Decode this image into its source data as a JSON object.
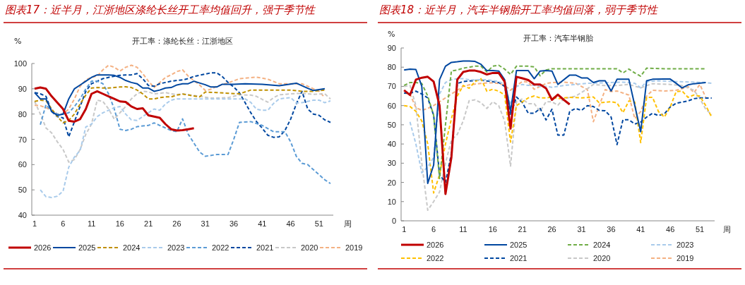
{
  "chart_data": [
    {
      "type": "line",
      "title": "图表17：近半月，江浙地区涤纶长丝开工率均值回升，强于季节性",
      "subtitle": "开工率：涤纶长丝：江浙地区",
      "xlabel": "周",
      "ylabel": "%",
      "xlim": [
        0.5,
        53.5
      ],
      "xticks": [
        1,
        6,
        11,
        16,
        21,
        26,
        31,
        36,
        41,
        46,
        51
      ],
      "ylim": [
        40,
        100
      ],
      "yticks": [
        40,
        50,
        60,
        70,
        80,
        90,
        100
      ],
      "legend": "bottom",
      "series": [
        {
          "name": "2026",
          "color": "#c00000",
          "line_style": "solid",
          "x": [
            1,
            2,
            3,
            4,
            5,
            6,
            7,
            8,
            9,
            10,
            11,
            12,
            13,
            14,
            15,
            16,
            17,
            18,
            19,
            20,
            21,
            22,
            23,
            24,
            25,
            26,
            27,
            28,
            29
          ],
          "values": [
            90,
            90.5,
            90,
            87,
            84.5,
            82,
            77.3,
            77,
            78,
            82,
            88,
            89,
            88,
            87,
            86,
            85,
            84.8,
            83,
            82,
            82.3,
            79.5,
            79,
            78.5,
            76,
            74,
            73.5,
            73.6,
            74,
            74.4
          ]
        },
        {
          "name": "2025",
          "color": "#0047a0",
          "line_style": "solid",
          "x": [
            1,
            2,
            3,
            4,
            5,
            6,
            7,
            8,
            9,
            10,
            11,
            12,
            13,
            14,
            15,
            16,
            17,
            18,
            19,
            20,
            21,
            22,
            23,
            24,
            25,
            26,
            27,
            28,
            29,
            30,
            31,
            32,
            33,
            34,
            36,
            38,
            41,
            44,
            47,
            49,
            50,
            52
          ],
          "values": [
            88.5,
            86,
            86,
            81,
            79.5,
            80,
            86,
            90,
            91.5,
            93,
            94.5,
            95.5,
            95.5,
            95.5,
            95.3,
            94.5,
            93.3,
            92.5,
            92,
            90.3,
            90.3,
            89,
            89.5,
            90.3,
            90.5,
            91.5,
            92,
            92,
            93,
            92.3,
            91.6,
            90.7,
            90.7,
            91.8,
            91.8,
            92,
            91.8,
            91.2,
            92.2,
            90.2,
            89.3,
            90
          ]
        },
        {
          "name": "2024",
          "color": "#c09000",
          "line_style": "dashed",
          "x": [
            1,
            2,
            3,
            4,
            5,
            6,
            7,
            8,
            9,
            10,
            11,
            12,
            13,
            14,
            15,
            16,
            17,
            18,
            19,
            20,
            21,
            22,
            23,
            24,
            25,
            26,
            27,
            30,
            31,
            33,
            35,
            37,
            39,
            43,
            46,
            48,
            50,
            52
          ],
          "values": [
            85,
            85.5,
            85.3,
            82,
            79,
            76.5,
            77.5,
            80,
            84,
            87.5,
            90.3,
            90.5,
            90.3,
            90.3,
            90.5,
            90.7,
            90.8,
            90.5,
            89.5,
            88,
            86,
            86,
            86.5,
            86.8,
            86.8,
            87.5,
            87.9,
            86.8,
            88.7,
            88.5,
            88.2,
            88,
            89.5,
            89.5,
            89.5,
            89,
            89,
            89.5
          ]
        },
        {
          "name": "2023",
          "color": "#a9cbeb",
          "line_style": "dashed",
          "x": [
            2,
            3,
            4,
            5,
            6,
            7,
            8,
            9,
            10,
            11,
            12,
            13,
            14,
            15,
            16,
            17,
            18,
            19,
            20,
            21,
            22,
            23,
            24,
            25,
            26,
            27,
            30,
            35,
            38,
            39,
            40,
            41,
            42,
            43,
            44,
            45,
            46,
            47,
            48,
            49,
            50,
            51,
            52,
            53
          ],
          "values": [
            50,
            47.3,
            47,
            47.5,
            49.5,
            59,
            63,
            65.6,
            74.9,
            76,
            79,
            80.5,
            81.5,
            82.5,
            83,
            80,
            77.7,
            77.5,
            79,
            80.5,
            82,
            81.5,
            84,
            85.5,
            86,
            86,
            86,
            86,
            86,
            84.6,
            81.9,
            81.5,
            81.5,
            84.2,
            86,
            86.3,
            86.5,
            84.4,
            84.5,
            85,
            85.5,
            85.5,
            84.5,
            85.2
          ]
        },
        {
          "name": "2022",
          "color": "#5b9bd5",
          "line_style": "dashed",
          "x": [
            2,
            3,
            4,
            5,
            6,
            7,
            8,
            9,
            10,
            11,
            12,
            13,
            14,
            15,
            16,
            17,
            18,
            19,
            20,
            21,
            22,
            23,
            24,
            25,
            26,
            27,
            28,
            30,
            31,
            33,
            35,
            36,
            37,
            39,
            41,
            43,
            45,
            46,
            47,
            48,
            49,
            50,
            51,
            52,
            53
          ],
          "values": [
            75.8,
            83.7,
            81,
            80,
            80,
            80.5,
            83,
            86,
            90,
            93,
            93,
            92,
            88,
            82,
            74,
            73.5,
            74,
            75,
            75.3,
            75.5,
            76.5,
            75.5,
            74.5,
            73.5,
            73,
            78.1,
            72,
            65,
            63.3,
            64,
            64,
            70,
            76.7,
            77,
            75.5,
            73,
            73,
            69,
            63.3,
            60.5,
            60,
            58,
            56,
            54,
            52.5
          ]
        },
        {
          "name": "2021",
          "color": "#0047a0",
          "line_style": "dashed",
          "x": [
            1,
            2,
            3,
            4,
            5,
            6,
            7,
            8,
            9,
            10,
            11,
            12,
            13,
            14,
            15,
            16,
            17,
            18,
            19,
            20,
            21,
            22,
            23,
            24,
            25,
            26,
            27,
            28,
            29,
            31,
            32,
            33,
            34,
            35,
            36,
            37,
            38,
            39,
            40,
            41,
            42,
            43,
            44,
            45,
            46,
            47,
            48,
            49,
            50,
            51,
            52,
            53
          ],
          "values": [
            88.5,
            88,
            87,
            81,
            79,
            78.5,
            71,
            77,
            83,
            89,
            92,
            93,
            94,
            94.5,
            95,
            95.3,
            95.5,
            95.5,
            96,
            94,
            91.3,
            91,
            92,
            92.5,
            93,
            93.3,
            93.5,
            94,
            94.9,
            95.8,
            96.3,
            96.3,
            94.8,
            92.5,
            90.7,
            88.4,
            84.5,
            80.5,
            77,
            74.4,
            71.6,
            70.8,
            71,
            73.5,
            78,
            84,
            89,
            82,
            80,
            79.5,
            77.7,
            76.7
          ]
        },
        {
          "name": "2020",
          "color": "#c8c8c8",
          "line_style": "dashed",
          "x": [
            1,
            2,
            3,
            4,
            5,
            6,
            7,
            8,
            9,
            10,
            11,
            12,
            13,
            14,
            15,
            16,
            17,
            18,
            19,
            20,
            21,
            22,
            23,
            24,
            25,
            26,
            27,
            30,
            32,
            35,
            37,
            39,
            40,
            41,
            42,
            43,
            44,
            46,
            48,
            50,
            52,
            53
          ],
          "values": [
            85,
            80,
            74.5,
            72.5,
            69,
            66,
            61,
            62,
            66,
            72,
            76,
            85.5,
            85,
            82,
            78,
            80.5,
            83,
            86,
            88,
            89,
            88.8,
            88,
            88.2,
            88.5,
            88,
            87.7,
            88,
            87,
            86.3,
            86.5,
            87.6,
            87.5,
            87,
            85.8,
            84.7,
            86.5,
            87.6,
            88,
            88.2,
            87.8,
            88,
            86
          ]
        },
        {
          "name": "2019",
          "color": "#f4b183",
          "line_style": "dashed",
          "x": [
            1,
            2,
            3,
            4,
            5,
            6,
            7,
            8,
            9,
            10,
            11,
            12,
            13,
            14,
            15,
            16,
            17,
            18,
            19,
            20,
            21,
            22,
            23,
            24,
            25,
            26,
            27,
            28,
            30,
            31,
            32,
            33,
            35,
            37,
            38,
            40,
            42,
            44,
            45,
            48,
            49,
            51,
            52
          ],
          "values": [
            83.5,
            83.3,
            82.5,
            81.5,
            80,
            80,
            82,
            86,
            91,
            93.5,
            94.5,
            95,
            97.5,
            99.3,
            98.5,
            97,
            98.5,
            99.3,
            98.5,
            96,
            93,
            90.5,
            92.5,
            94.5,
            95.5,
            96.8,
            97.5,
            95,
            91.5,
            89.3,
            89.8,
            91,
            92.3,
            94,
            94.2,
            94.6,
            93.8,
            92,
            92,
            92,
            91,
            89,
            86.5
          ]
        }
      ]
    },
    {
      "type": "line",
      "title": "图表18：近半月，汽车半钢胎开工率均值回落，弱于季节性",
      "subtitle": "开工率：汽车半钢胎",
      "xlabel": "周",
      "ylabel": "%",
      "xlim": [
        0.5,
        53.5
      ],
      "xticks": [
        1,
        6,
        11,
        16,
        21,
        26,
        31,
        36,
        41,
        46,
        51
      ],
      "ylim": [
        0,
        90
      ],
      "yticks": [
        0,
        10,
        20,
        30,
        40,
        50,
        60,
        70,
        80,
        90
      ],
      "legend": "bottom",
      "series": [
        {
          "name": "2026",
          "color": "#c00000",
          "line_style": "solid",
          "x": [
            1,
            2,
            3,
            4,
            5,
            6,
            7,
            8,
            9,
            10,
            11,
            12,
            13,
            14,
            15,
            16,
            17,
            18,
            19,
            20,
            21,
            22,
            23,
            24,
            25,
            26,
            27,
            28,
            29
          ],
          "values": [
            68,
            65.5,
            73.5,
            74.5,
            75,
            72.5,
            60,
            14,
            33,
            73.5,
            77.5,
            78.2,
            78.2,
            77.5,
            76.2,
            77,
            77,
            72.5,
            48,
            75,
            74.2,
            73.3,
            71,
            71,
            69,
            63,
            65.7,
            63,
            60.6
          ]
        },
        {
          "name": "2025",
          "color": "#0047a0",
          "line_style": "solid",
          "x": [
            1,
            2,
            3,
            4,
            5,
            6,
            7,
            8,
            9,
            10,
            11,
            12,
            13,
            14,
            15,
            16,
            17,
            18,
            19,
            20,
            21,
            22,
            23,
            24,
            25,
            26,
            27,
            29,
            30,
            31,
            32,
            33,
            34,
            35,
            36,
            37,
            39,
            41,
            42,
            43,
            45,
            46,
            47,
            48,
            49,
            50,
            52
          ],
          "values": [
            78.5,
            79,
            78.8,
            70,
            19.5,
            29,
            73.5,
            80.5,
            82.5,
            82.8,
            83.2,
            83.2,
            83,
            81.5,
            78.2,
            78.2,
            78,
            73.5,
            57,
            78.2,
            78.2,
            78.2,
            74,
            78,
            78.2,
            78,
            71,
            75.9,
            75.9,
            74.4,
            74.4,
            72,
            72.9,
            72.9,
            67.6,
            73.7,
            73.7,
            46.4,
            72.9,
            73.7,
            73.8,
            73.8,
            71.6,
            69.2,
            70.8,
            71.4,
            72
          ]
        },
        {
          "name": "2024",
          "color": "#70ad47",
          "line_style": "dashed",
          "x": [
            1,
            2,
            3,
            4,
            5,
            6,
            7,
            8,
            9,
            10,
            11,
            12,
            13,
            14,
            15,
            16,
            17,
            18,
            19,
            20,
            21,
            22,
            23,
            24,
            25,
            26,
            30,
            34,
            37,
            38,
            39,
            40,
            41,
            42,
            45,
            48,
            52
          ],
          "values": [
            70.5,
            72,
            72,
            71.5,
            65,
            55,
            22,
            50,
            78,
            78.5,
            79.5,
            80,
            80.5,
            80.5,
            77.5,
            80.5,
            81,
            79,
            76.2,
            80.5,
            80.5,
            80.5,
            80.2,
            75.5,
            78.5,
            79.2,
            79.2,
            79.2,
            79.2,
            77,
            79,
            77,
            75.3,
            79.5,
            79.2,
            79.2,
            79.2
          ]
        },
        {
          "name": "2023",
          "color": "#a9cbeb",
          "line_style": "dashed",
          "x": [
            2,
            3,
            4,
            5,
            6,
            7,
            8,
            9,
            10,
            11,
            12,
            13,
            14,
            15,
            16,
            17,
            18,
            19,
            20,
            21,
            22,
            23,
            24,
            25,
            26,
            28,
            32,
            38,
            40,
            41,
            42,
            44,
            47,
            50,
            52,
            53
          ],
          "values": [
            51.5,
            40,
            25,
            28,
            33,
            66,
            72,
            73.5,
            74,
            74,
            73.5,
            73.3,
            73.5,
            73.5,
            73,
            72.5,
            71,
            60.5,
            70,
            71,
            70.5,
            70.5,
            70,
            70,
            69.5,
            70.5,
            71.6,
            72.2,
            71.6,
            69.2,
            72.5,
            72.9,
            72.5,
            72.2,
            72,
            71.6
          ]
        },
        {
          "name": "2022",
          "color": "#ffc000",
          "line_style": "dashed",
          "x": [
            1,
            2,
            3,
            4,
            5,
            6,
            7,
            8,
            9,
            10,
            11,
            12,
            13,
            14,
            15,
            16,
            17,
            18,
            19,
            20,
            21,
            22,
            23,
            24,
            25,
            26,
            27,
            29,
            31,
            33,
            34,
            36,
            37,
            38,
            39,
            40,
            41,
            42,
            43,
            44,
            45,
            46,
            47,
            48,
            49,
            50,
            51,
            52,
            53
          ],
          "values": [
            60,
            59.5,
            57,
            52,
            40,
            14.5,
            24,
            40,
            53,
            65,
            70.5,
            69,
            72.5,
            74,
            67.5,
            68.5,
            67.5,
            65.5,
            41,
            60,
            62,
            64,
            65,
            64,
            64,
            64.5,
            63.6,
            64.3,
            64,
            64.5,
            61.4,
            62,
            61.4,
            56.3,
            62.4,
            61.8,
            40.7,
            64.3,
            64.3,
            56.9,
            54,
            59.3,
            67.3,
            67.6,
            64.3,
            65.5,
            64.9,
            60,
            54
          ]
        },
        {
          "name": "2021",
          "color": "#0047a0",
          "line_style": "dashed",
          "x": [
            1,
            2,
            3,
            4,
            5,
            6,
            7,
            8,
            9,
            10,
            11,
            12,
            13,
            14,
            15,
            16,
            17,
            18,
            19,
            20,
            21,
            22,
            23,
            24,
            25,
            26,
            27,
            28,
            29,
            30,
            31,
            32,
            33,
            34,
            35,
            36,
            37,
            38,
            39,
            40,
            41,
            42,
            43,
            44,
            45,
            46,
            47,
            48,
            49,
            50,
            51,
            53
          ],
          "values": [
            66.5,
            66.5,
            67.5,
            66,
            64,
            55,
            24,
            20,
            35,
            71.5,
            72.5,
            72.8,
            73,
            73.3,
            72.8,
            72.5,
            72,
            70,
            55,
            64.5,
            61.5,
            56,
            56,
            58.5,
            52.5,
            58.1,
            44.6,
            44.6,
            56.9,
            58.5,
            57.5,
            60,
            59.5,
            57.5,
            57.3,
            54,
            39.7,
            52.6,
            52.6,
            50.4,
            51.4,
            54,
            56,
            54.8,
            55.7,
            59.3,
            61.2,
            61.8,
            62.4,
            63.6,
            64,
            63.9
          ]
        },
        {
          "name": "2020",
          "color": "#c8c8c8",
          "line_style": "dashed",
          "x": [
            1,
            2,
            3,
            4,
            5,
            6,
            7,
            8,
            9,
            10,
            11,
            12,
            13,
            14,
            15,
            16,
            17,
            18,
            19,
            20,
            21,
            22,
            23,
            24,
            25,
            26,
            27,
            28,
            30,
            32,
            33,
            35,
            37,
            39,
            41,
            42,
            43,
            46,
            48,
            50,
            51,
            52,
            53
          ],
          "values": [
            70,
            70.5,
            60,
            30,
            5.5,
            10,
            15,
            30,
            42,
            45,
            52,
            62.5,
            63,
            61.5,
            58.5,
            62,
            60,
            52,
            28.5,
            62,
            63.5,
            61,
            61,
            57,
            62,
            62,
            60.2,
            63.6,
            64.9,
            68.8,
            71,
            70.4,
            70.4,
            71,
            69.2,
            70.4,
            71.4,
            71,
            70.4,
            68,
            63.6,
            58.1,
            55.3
          ]
        },
        {
          "name": "2019",
          "color": "#f4b183",
          "line_style": "dashed",
          "x": [
            1,
            2,
            3,
            4,
            5,
            6,
            7,
            8,
            9,
            10,
            11,
            12,
            13,
            14,
            15,
            16,
            17,
            18,
            19,
            20,
            21,
            22,
            23,
            24,
            25,
            26,
            28,
            30,
            32,
            33,
            34,
            35,
            36,
            37,
            39,
            40,
            41,
            42,
            43,
            45,
            47,
            48,
            49,
            50,
            51,
            52
          ],
          "values": [
            66.5,
            66,
            59,
            57.5,
            58.5,
            60,
            62,
            64,
            66,
            68,
            70,
            70.8,
            71.2,
            71.5,
            71.8,
            71.8,
            71.5,
            70.5,
            68,
            70.5,
            72.5,
            72.2,
            68.5,
            70,
            71.5,
            72,
            72.2,
            71.6,
            68.3,
            51.6,
            60,
            68.3,
            67.3,
            67.6,
            65.5,
            53.2,
            56.9,
            64.9,
            68,
            67.6,
            68,
            68.8,
            70,
            66.7,
            71,
            64.3
          ]
        }
      ]
    }
  ]
}
